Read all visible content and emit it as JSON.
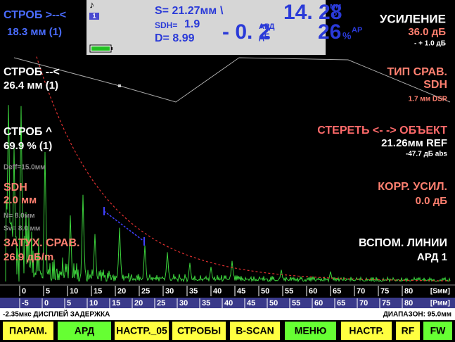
{
  "top_left": {
    "label": "СТРОБ >--<",
    "value": "18.3 мм (1)"
  },
  "status_panel": {
    "icon": "♪",
    "channel": "1",
    "s": "S= 21.27мм",
    "s_mark": "\\",
    "sdh": "SDH=",
    "sdh_value": "1.9",
    "d": "D=  8.99",
    "reading1": "14. 28",
    "reading1_unit": "мм",
    "reading1_sub": "P",
    "reading2": "- 0. 2",
    "reading2_unit": "АРД",
    "reading2_sub": "дБ",
    "reading3": "26",
    "reading3_unit": "%",
    "reading3_sub": "АР"
  },
  "gain": {
    "label": "УСИЛЕНИЕ",
    "value": "36.0 дБ",
    "step": "- +  1.0 дБ"
  },
  "left_labels": [
    {
      "text": "СТРОБ --<",
      "color": "#ffffff"
    },
    {
      "text": "26.4 мм (1)",
      "color": "#ffffff"
    },
    {
      "text": "СТРОБ ^",
      "color": "#ffffff"
    },
    {
      "text": "69.9 % (1)",
      "color": "#ffffff"
    },
    {
      "text": "Deff=15.0мм",
      "color": "#8a8a8a"
    },
    {
      "text": "SDH",
      "color": "#ff8070"
    },
    {
      "text": "2.0 мм",
      "color": "#ff8070"
    },
    {
      "text": "N= 8.0мм",
      "color": "#8a8a8a"
    },
    {
      "text": "Sv= 8.0 мм",
      "color": "#8a8a8a"
    },
    {
      "text": "ЗАТУХ. СРАВ.",
      "color": "#ff8070"
    },
    {
      "text": "26.9 дБ/m",
      "color": "#ff8070"
    }
  ],
  "right_labels": [
    {
      "text": "ТИП СРАВ.",
      "color": "#ff8070"
    },
    {
      "text": "SDH",
      "color": "#ff8070"
    },
    {
      "text": "1.7 мм DSR",
      "color": "#ff8070"
    },
    {
      "text": "СТЕРЕТЬ <- -> ОБЪЕКТ",
      "color": "#ff6a6a"
    },
    {
      "text": "21.26мм REF",
      "color": "#ffffff"
    },
    {
      "text": "-47.7 дБ abs",
      "color": "#ffffff"
    },
    {
      "text": "КОРР. УСИЛ.",
      "color": "#ff8070"
    },
    {
      "text": "0.0 дБ",
      "color": "#ff8070"
    },
    {
      "text": "ВСПОМ. ЛИНИИ",
      "color": "#ffffff"
    },
    {
      "text": "АРД 1",
      "color": "#ffffff"
    }
  ],
  "scale_s": {
    "labels": [
      "0",
      "5",
      "10",
      "15",
      "20",
      "25",
      "30",
      "35",
      "40",
      "45",
      "50",
      "55",
      "60",
      "65",
      "70",
      "75",
      "80"
    ],
    "unit": "[Sмм]"
  },
  "scale_p": {
    "labels": [
      "-5",
      "0",
      "5",
      "10",
      "15",
      "20",
      "25",
      "30",
      "35",
      "40",
      "45",
      "50",
      "55",
      "60",
      "65",
      "70",
      "75",
      "80"
    ],
    "unit": "[Pмм]"
  },
  "status_bar": {
    "left": "-2.35мкс  ДИСПЛЕЙ ЗАДЕРЖКА",
    "right": "ДИАПАЗОН: 95.0мм"
  },
  "buttons": [
    {
      "label": "ПАРАМ.",
      "color": "#ffff40"
    },
    {
      "label": "АРД",
      "color": "#66ff33"
    },
    {
      "label": "НАСТР._05",
      "color": "#ffff40"
    },
    {
      "label": "СТРОБЫ",
      "color": "#ffff40"
    },
    {
      "label": "B-SCAN",
      "color": "#ffff40"
    },
    {
      "label": "МЕНЮ",
      "color": "#66ff33"
    },
    {
      "label": "НАСТР.",
      "color": "#ffff40"
    },
    {
      "label": "RF",
      "color": "#ffff40"
    },
    {
      "label": "FW",
      "color": "#66ff33"
    }
  ]
}
